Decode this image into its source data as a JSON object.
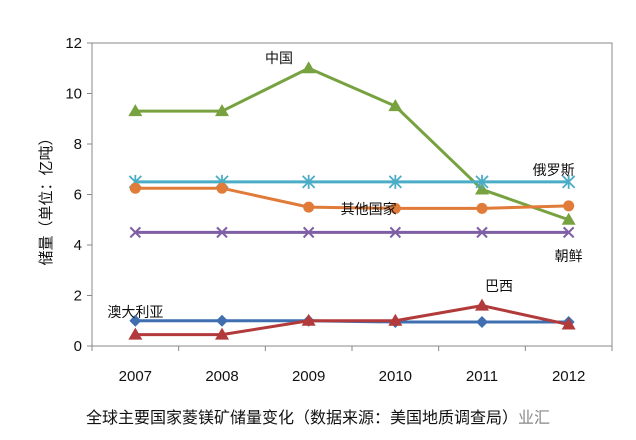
{
  "caption": "全球主要国家菱镁矿储量变化（数据来源：美国地质调查局）",
  "watermark": "业汇",
  "chart_data": {
    "type": "line",
    "title": "",
    "xlabel": "",
    "ylabel": "储量（单位：亿吨）",
    "ylim": [
      0,
      12
    ],
    "yticks": [
      0,
      2,
      4,
      6,
      8,
      10,
      12
    ],
    "categories": [
      "2007",
      "2008",
      "2009",
      "2010",
      "2011",
      "2012"
    ],
    "grid": false,
    "series": [
      {
        "name": "中国",
        "color": "#77a23f",
        "marker": "triangle",
        "values": [
          9.3,
          9.3,
          11.0,
          9.5,
          6.2,
          5.0
        ]
      },
      {
        "name": "俄罗斯",
        "color": "#4bacc6",
        "marker": "asterisk",
        "values": [
          6.5,
          6.5,
          6.5,
          6.5,
          6.5,
          6.5
        ]
      },
      {
        "name": "其他国家",
        "color": "#e07b39",
        "marker": "circle",
        "values": [
          6.25,
          6.25,
          5.5,
          5.45,
          5.45,
          5.55
        ]
      },
      {
        "name": "朝鲜",
        "color": "#7e5ea4",
        "marker": "x",
        "values": [
          4.5,
          4.5,
          4.5,
          4.5,
          4.5,
          4.5
        ]
      },
      {
        "name": "澳大利亚",
        "color": "#3f6fb0",
        "marker": "diamond",
        "values": [
          1.0,
          1.0,
          1.0,
          0.95,
          0.95,
          0.95
        ]
      },
      {
        "name": "巴西",
        "color": "#b23a3a",
        "marker": "triangle",
        "values": [
          0.45,
          0.45,
          1.0,
          1.0,
          1.6,
          0.85
        ]
      }
    ]
  }
}
